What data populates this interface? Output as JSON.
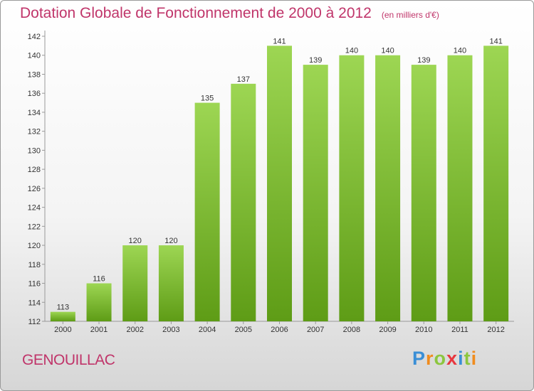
{
  "chart_data": {
    "type": "bar",
    "title": "Dotation Globale de Fonctionnement de 2000 à 2012",
    "unit": "(en milliers d'€)",
    "xlabel": "",
    "ylabel": "",
    "categories": [
      "2000",
      "2001",
      "2002",
      "2003",
      "2004",
      "2005",
      "2006",
      "2007",
      "2008",
      "2009",
      "2010",
      "2011",
      "2012"
    ],
    "values": [
      113,
      116,
      120,
      120,
      135,
      137,
      141,
      139,
      140,
      140,
      139,
      140,
      141
    ],
    "ylim": [
      112,
      142
    ],
    "yticks": [
      112,
      114,
      116,
      118,
      120,
      122,
      124,
      126,
      128,
      130,
      132,
      134,
      136,
      138,
      140,
      142
    ],
    "grid": false,
    "legend": "none",
    "bar_color": "#7dbf2e",
    "bar_color_light": "#9dd653",
    "bar_color_dark": "#5e9c16"
  },
  "commune": "GENOUILLAC",
  "logo": {
    "letters": [
      "P",
      "r",
      "o",
      "x",
      "i",
      "t",
      "i"
    ],
    "colors": [
      "#3a8fd6",
      "#f08c1e",
      "#8cc63f",
      "#e8373f",
      "#3a8fd6",
      "#8cc63f",
      "#f08c1e"
    ]
  }
}
